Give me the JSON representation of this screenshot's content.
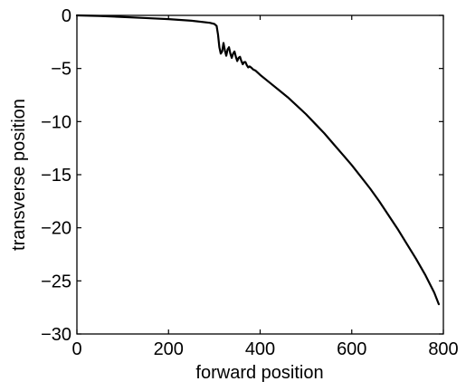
{
  "chart_data": {
    "type": "line",
    "title": "",
    "xlabel": "forward position",
    "ylabel": "transverse position",
    "xlim": [
      0,
      800
    ],
    "ylim": [
      -30,
      0
    ],
    "x_ticks": [
      0,
      200,
      400,
      600,
      800
    ],
    "y_ticks": [
      0,
      -5,
      -10,
      -15,
      -20,
      -25,
      -30
    ],
    "x_tick_labels": [
      "0",
      "200",
      "400",
      "600",
      "800"
    ],
    "y_tick_labels": [
      "0",
      "−5",
      "−10",
      "−15",
      "−20",
      "−25",
      "−30"
    ],
    "grid": false,
    "legend": "none",
    "line_color": "#000000",
    "series": [
      {
        "x": [
          0,
          50,
          100,
          150,
          200,
          250,
          290,
          300,
          305,
          308,
          311,
          314,
          317,
          320,
          323,
          326,
          329,
          332,
          335,
          338,
          341,
          344,
          347,
          350,
          353,
          356,
          359,
          362,
          365,
          368,
          371,
          374,
          377,
          380,
          385,
          390,
          400,
          420,
          440,
          460,
          480,
          500,
          520,
          540,
          560,
          580,
          600,
          620,
          640,
          660,
          680,
          700,
          720,
          740,
          760,
          780,
          790
        ],
        "y": [
          0,
          -0.05,
          -0.15,
          -0.25,
          -0.35,
          -0.5,
          -0.7,
          -0.8,
          -1.0,
          -1.8,
          -3.0,
          -3.6,
          -3.4,
          -2.6,
          -3.3,
          -3.8,
          -3.2,
          -3.0,
          -3.6,
          -4.0,
          -3.6,
          -3.4,
          -3.9,
          -4.3,
          -4.0,
          -3.9,
          -4.3,
          -4.6,
          -4.4,
          -4.4,
          -4.7,
          -4.9,
          -4.8,
          -4.9,
          -5.1,
          -5.2,
          -5.6,
          -6.3,
          -7.0,
          -7.7,
          -8.5,
          -9.3,
          -10.2,
          -11.1,
          -12.1,
          -13.1,
          -14.1,
          -15.2,
          -16.3,
          -17.5,
          -18.8,
          -20.1,
          -21.5,
          -22.9,
          -24.4,
          -26.1,
          -27.2
        ]
      }
    ]
  }
}
